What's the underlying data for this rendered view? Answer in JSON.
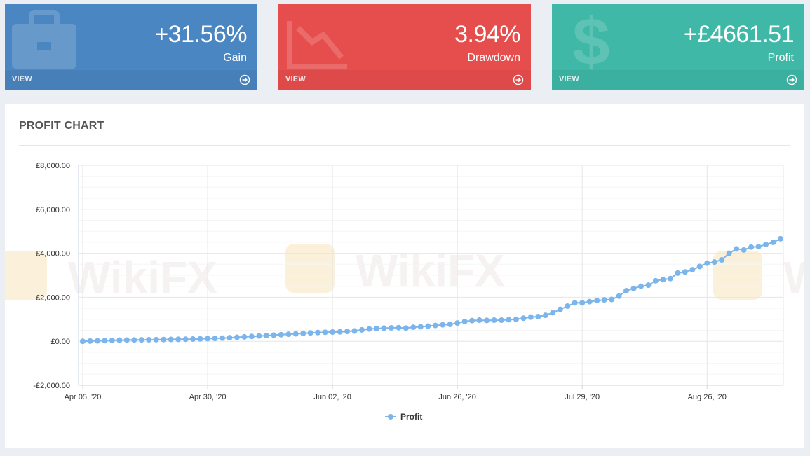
{
  "cards": [
    {
      "id": "gain",
      "value": "+31.56%",
      "label": "Gain",
      "view": "VIEW",
      "color": "#4a86c1"
    },
    {
      "id": "drawdown",
      "value": "3.94%",
      "label": "Drawdown",
      "view": "VIEW",
      "color": "#e64e4d"
    },
    {
      "id": "profit",
      "value": "+£4661.51",
      "label": "Profit",
      "view": "VIEW",
      "color": "#3fb8a7"
    }
  ],
  "panel": {
    "title": "PROFIT CHART"
  },
  "watermark": "WikiFX",
  "chart_data": {
    "type": "line",
    "title": "PROFIT CHART",
    "xlabel": "",
    "ylabel": "",
    "ylim": [
      -2000,
      8000
    ],
    "yticks": [
      -2000,
      0,
      2000,
      4000,
      6000,
      8000
    ],
    "ytick_labels": [
      "-£2,000.00",
      "£0.00",
      "£2,000.00",
      "£4,000.00",
      "£6,000.00",
      "£8,000.00"
    ],
    "x_tick_labels": [
      "Apr 05, '20",
      "Apr 30, '20",
      "Jun 02, '20",
      "Jun 26, '20",
      "Jul 29, '20",
      "Aug 26, '20"
    ],
    "x_tick_index": [
      0,
      17,
      34,
      51,
      68,
      85
    ],
    "legend": "bottom-center",
    "series": [
      {
        "name": "Profit",
        "color": "#7cb5ec",
        "values": [
          0,
          10,
          20,
          30,
          40,
          50,
          55,
          60,
          65,
          70,
          75,
          80,
          85,
          90,
          95,
          100,
          110,
          120,
          130,
          145,
          160,
          180,
          200,
          220,
          240,
          260,
          280,
          300,
          320,
          340,
          360,
          380,
          395,
          410,
          420,
          430,
          450,
          470,
          520,
          560,
          580,
          600,
          610,
          620,
          600,
          640,
          660,
          690,
          720,
          750,
          770,
          830,
          900,
          940,
          960,
          950,
          960,
          960,
          980,
          1000,
          1050,
          1100,
          1120,
          1180,
          1300,
          1450,
          1600,
          1750,
          1750,
          1800,
          1850,
          1880,
          1900,
          2050,
          2300,
          2400,
          2500,
          2550,
          2750,
          2800,
          2850,
          3100,
          3150,
          3250,
          3400,
          3550,
          3600,
          3700,
          4000,
          4200,
          4150,
          4280,
          4300,
          4400,
          4500,
          4661.51
        ]
      }
    ]
  }
}
